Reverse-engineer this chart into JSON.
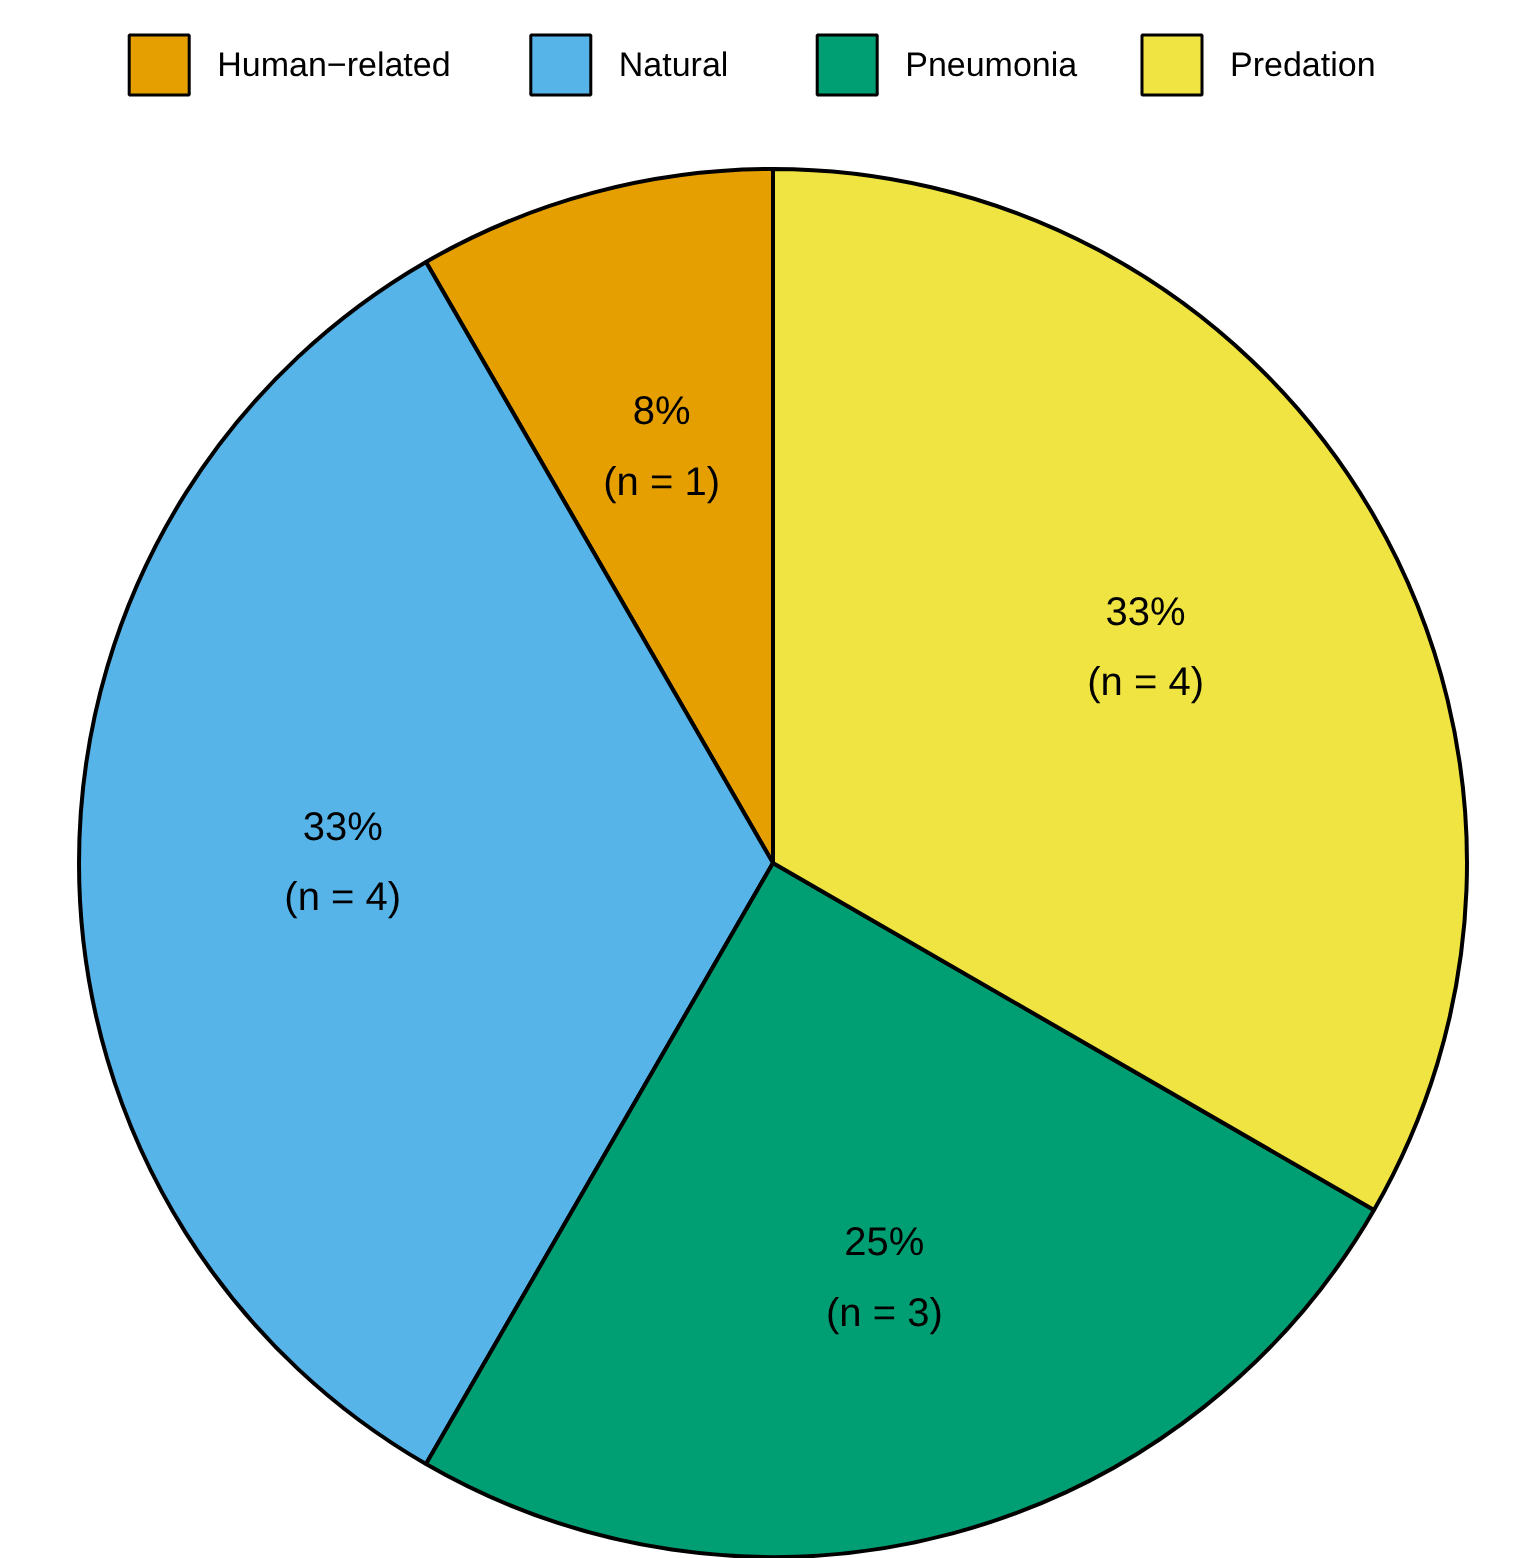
{
  "chart_data": {
    "type": "pie",
    "categories": [
      "Human−related",
      "Natural",
      "Pneumonia",
      "Predation"
    ],
    "values": [
      1,
      4,
      3,
      4
    ],
    "colors": [
      "#e69f00",
      "#56b4e9",
      "#009e73",
      "#f0e442"
    ],
    "value_labels": [
      "8%\n(n = 1)",
      "33%\n(n = 4)",
      "25%\n(n = 3)",
      "33%\n(n = 4)"
    ],
    "legend": "top"
  }
}
